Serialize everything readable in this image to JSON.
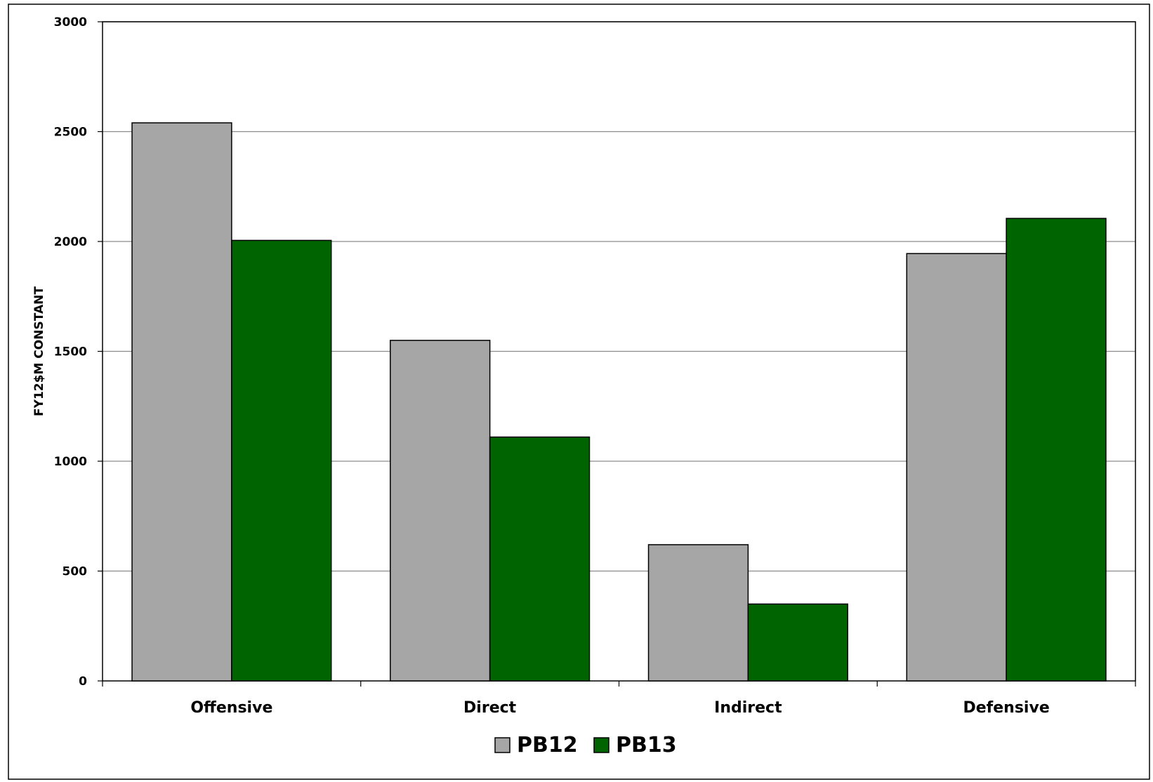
{
  "chart_data": {
    "type": "bar",
    "title": "",
    "xlabel": "",
    "ylabel": "FY12$M CONSTANT",
    "categories": [
      "Offensive",
      "Direct",
      "Indirect",
      "Defensive"
    ],
    "series": [
      {
        "name": "PB12",
        "values": [
          2540,
          1550,
          620,
          1945
        ],
        "color": "#a6a6a6"
      },
      {
        "name": "PB13",
        "values": [
          2005,
          1110,
          350,
          2105
        ],
        "color": "#006400"
      }
    ],
    "ylim": [
      0,
      3000
    ],
    "yticks": [
      0,
      500,
      1000,
      1500,
      2000,
      2500,
      3000
    ],
    "grid": true,
    "legend_position": "bottom-center"
  }
}
